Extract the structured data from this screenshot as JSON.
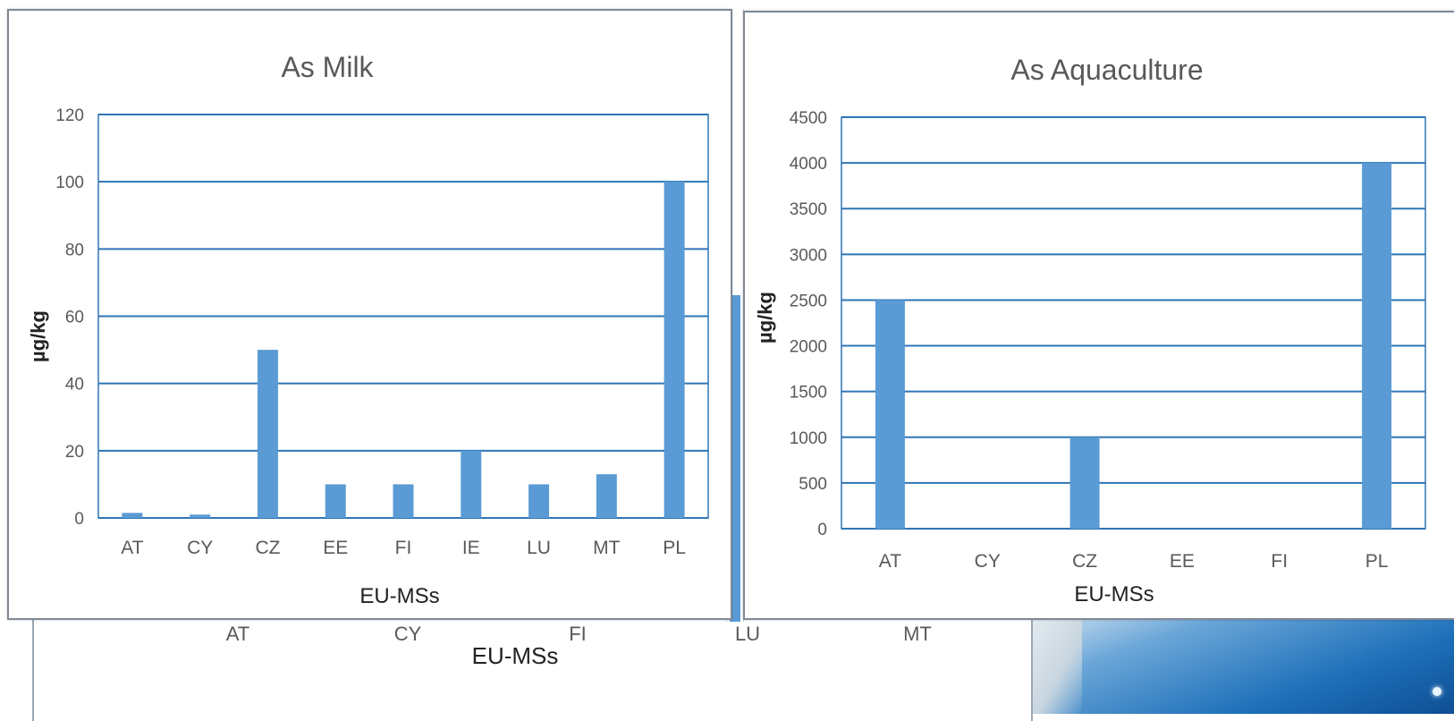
{
  "colors": {
    "bar": "#5b9bd5",
    "grid": "#2e75b6",
    "text": "#595959"
  },
  "background_window": {
    "categories": [
      "AT",
      "CY",
      "FI",
      "LU",
      "MT"
    ],
    "y_tick": "0",
    "xlabel": "EU-MSs"
  },
  "chart_data": [
    {
      "type": "bar",
      "title": "As Milk",
      "xlabel": "EU-MSs",
      "ylabel": "µg/kg",
      "categories": [
        "AT",
        "CY",
        "CZ",
        "EE",
        "FI",
        "IE",
        "LU",
        "MT",
        "PL"
      ],
      "values": [
        1.5,
        1,
        50,
        10,
        10,
        20,
        10,
        13,
        100
      ],
      "ylim": [
        0,
        120
      ],
      "yticks": [
        0,
        20,
        40,
        60,
        80,
        100,
        120
      ],
      "grid": true
    },
    {
      "type": "bar",
      "title": "As Aquaculture",
      "xlabel": "EU-MSs",
      "ylabel": "µg/kg",
      "categories": [
        "AT",
        "CY",
        "CZ",
        "EE",
        "FI",
        "PL"
      ],
      "values": [
        2500,
        0,
        1000,
        0,
        0,
        4000
      ],
      "ylim": [
        0,
        4500
      ],
      "yticks": [
        0,
        500,
        1000,
        1500,
        2000,
        2500,
        3000,
        3500,
        4000,
        4500
      ],
      "grid": true
    }
  ]
}
